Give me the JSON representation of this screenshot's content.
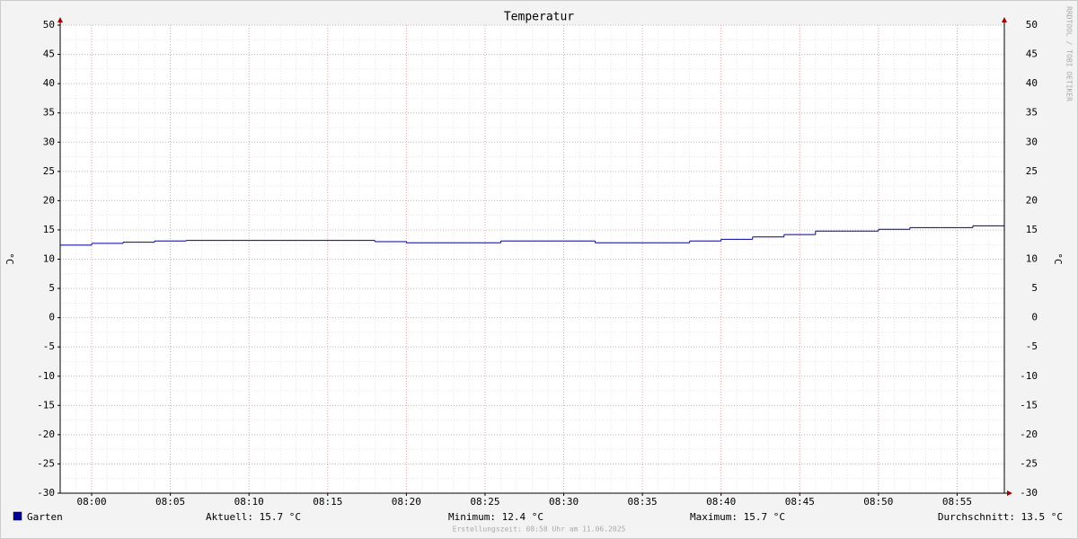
{
  "chart_data": {
    "type": "line",
    "title": "Temperatur",
    "y_label": "°C",
    "x": [
      "07:58",
      "08:00",
      "08:02",
      "08:04",
      "08:06",
      "08:08",
      "08:10",
      "08:12",
      "08:14",
      "08:16",
      "08:18",
      "08:20",
      "08:22",
      "08:24",
      "08:26",
      "08:28",
      "08:30",
      "08:32",
      "08:34",
      "08:36",
      "08:38",
      "08:40",
      "08:42",
      "08:44",
      "08:46",
      "08:48",
      "08:50",
      "08:52",
      "08:54",
      "08:56"
    ],
    "series": [
      {
        "name": "Garten",
        "color": "#000099",
        "values": [
          12.4,
          12.7,
          12.9,
          13.1,
          13.2,
          13.2,
          13.2,
          13.2,
          13.2,
          13.2,
          13.0,
          12.8,
          12.8,
          12.8,
          13.1,
          13.1,
          13.1,
          12.8,
          12.8,
          12.8,
          13.1,
          13.4,
          13.8,
          14.2,
          14.8,
          14.8,
          15.1,
          15.4,
          15.4,
          15.7
        ]
      }
    ],
    "step": true,
    "xlim": [
      "07:58",
      "08:58"
    ],
    "xticks": [
      "08:00",
      "08:05",
      "08:10",
      "08:15",
      "08:20",
      "08:25",
      "08:30",
      "08:35",
      "08:40",
      "08:45",
      "08:50",
      "08:55"
    ],
    "ylim": [
      -30,
      50
    ],
    "yticks": [
      -30,
      -25,
      -20,
      -15,
      -10,
      -5,
      0,
      5,
      10,
      15,
      20,
      25,
      30,
      35,
      40,
      45,
      50
    ],
    "grid": true,
    "stats": [
      "Aktuell: 15.7 °C",
      "Minimum: 12.4 °C",
      "Maximum: 15.7 °C",
      "Durchschnitt: 13.5 °C"
    ],
    "watermark": "RRDTOOL / TOBI OETIKER",
    "footer": "Erstellungszeit: 08:58 Uhr am 11.06.2025"
  }
}
